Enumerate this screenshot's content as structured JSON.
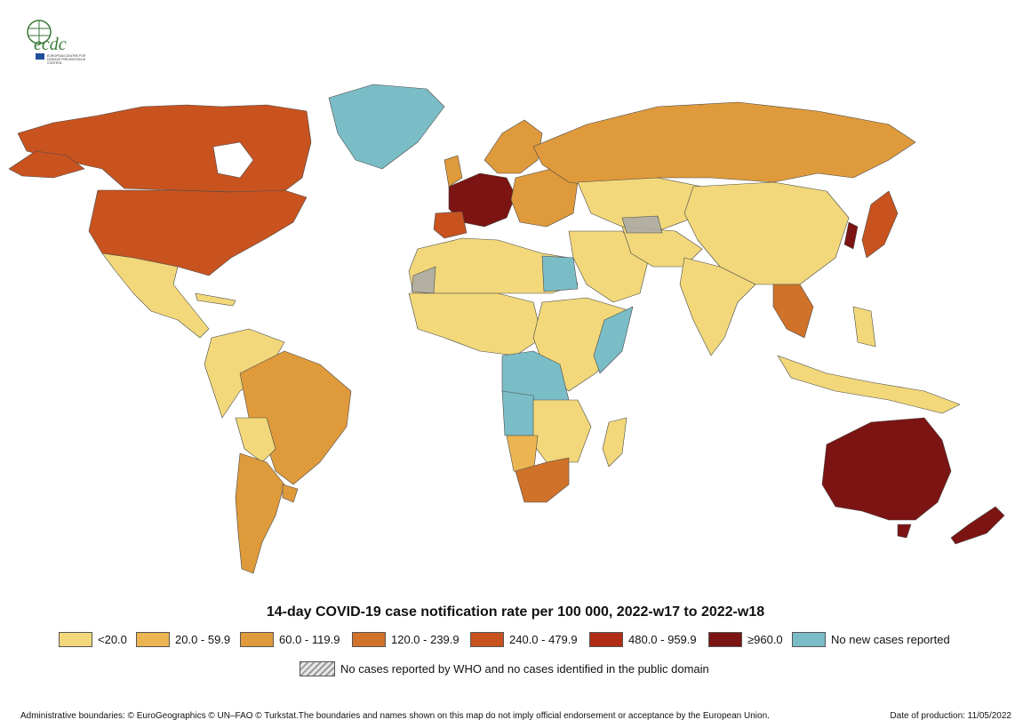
{
  "logo": {
    "text": "ecdc",
    "subtitle": "EUROPEAN CENTRE FOR DISEASE PREVENTION AND CONTROL"
  },
  "title": "14-day COVID-19 case notification rate per 100 000, 2022-w17 to 2022-w18",
  "legend": [
    {
      "label": "<20.0",
      "color": "#f2d87a"
    },
    {
      "label": "20.0 - 59.9",
      "color": "#ebb552"
    },
    {
      "label": "60.0 - 119.9",
      "color": "#df9a3b"
    },
    {
      "label": "120.0 - 239.9",
      "color": "#d0722a"
    },
    {
      "label": "240.0 - 479.9",
      "color": "#c8531f"
    },
    {
      "label": "480.0 - 959.9",
      "color": "#b02c16"
    },
    {
      "label": "≥960.0",
      "color": "#7b1412"
    },
    {
      "label": "No new cases reported",
      "color": "#7bbdc6"
    }
  ],
  "no_data_label": "No cases reported by WHO and no cases identified in the public domain",
  "footer": {
    "left": "Administrative boundaries: © EuroGeographics © UN–FAO © Turkstat.The boundaries and names shown on this map do not imply official endorsement or acceptance by the European Union.",
    "right": "Date of production: 11/05/2022"
  },
  "regions": [
    {
      "name": "Canada",
      "class": "240.0 - 479.9"
    },
    {
      "name": "United States",
      "class": "240.0 - 479.9"
    },
    {
      "name": "Greenland",
      "class": "No new cases reported"
    },
    {
      "name": "Mexico",
      "class": "<20.0"
    },
    {
      "name": "Brazil",
      "class": "60.0 - 119.9"
    },
    {
      "name": "Argentina",
      "class": "60.0 - 119.9"
    },
    {
      "name": "Russia",
      "class": "60.0 - 119.9"
    },
    {
      "name": "China",
      "class": "<20.0"
    },
    {
      "name": "India",
      "class": "<20.0"
    },
    {
      "name": "Australia",
      "class": "≥960.0"
    },
    {
      "name": "South Africa",
      "class": "120.0 - 239.9"
    },
    {
      "name": "Western Europe",
      "class": "≥960.0"
    },
    {
      "name": "Japan",
      "class": "240.0 - 479.9"
    },
    {
      "name": "Sub-Saharan Africa",
      "class": "<20.0"
    },
    {
      "name": "Central Africa",
      "class": "No new cases reported"
    },
    {
      "name": "Kazakhstan",
      "class": "<20.0"
    }
  ]
}
